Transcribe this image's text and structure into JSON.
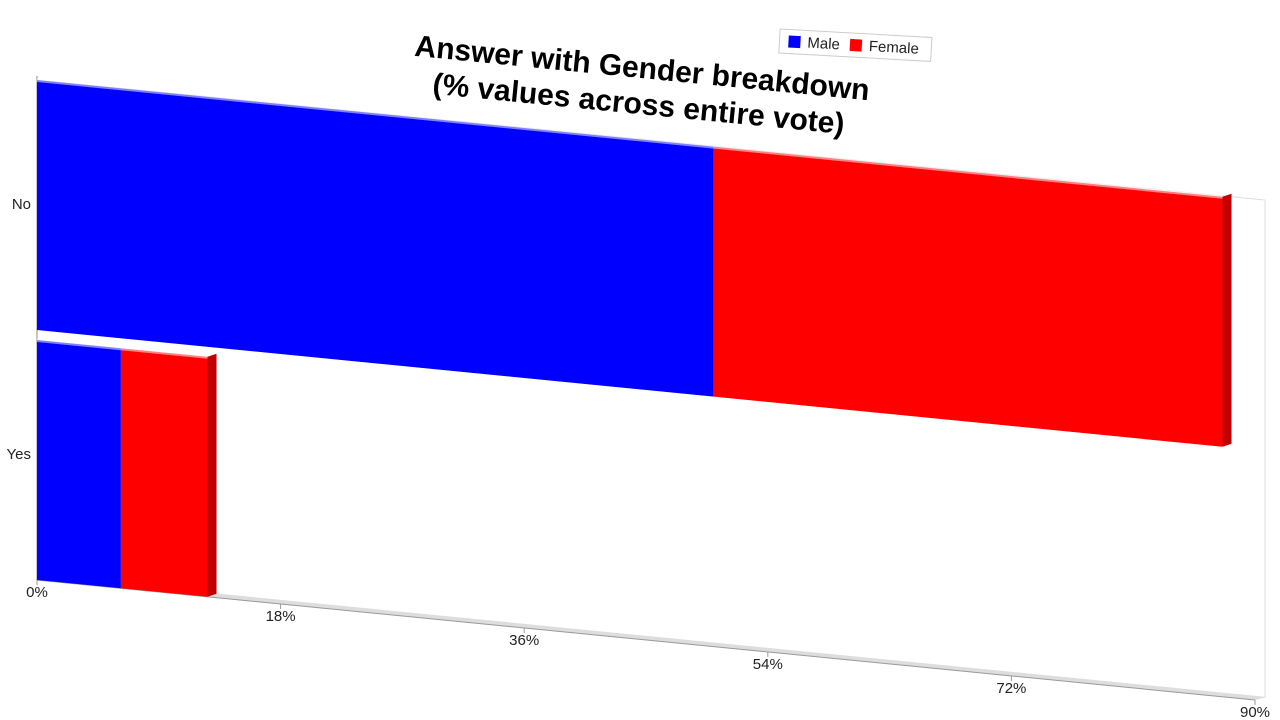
{
  "chart_data": {
    "type": "stacked-bar-horizontal",
    "title": [
      "Answer with Gender breakdown",
      "(% values across entire vote)"
    ],
    "categories": [
      "No",
      "Yes"
    ],
    "series": [
      {
        "name": "Male",
        "color": "#0000ff",
        "values": [
          50.0,
          6.2
        ]
      },
      {
        "name": "Female",
        "color": "#ff0000",
        "values": [
          37.6,
          6.4
        ]
      }
    ],
    "xlim": [
      0,
      90
    ],
    "xticks": [
      {
        "value": 0,
        "label": "0%"
      },
      {
        "value": 18,
        "label": "18%"
      },
      {
        "value": 36,
        "label": "36%"
      },
      {
        "value": 54,
        "label": "54%"
      },
      {
        "value": 72,
        "label": "72%"
      },
      {
        "value": 90,
        "label": "90%"
      }
    ],
    "grid": false
  }
}
